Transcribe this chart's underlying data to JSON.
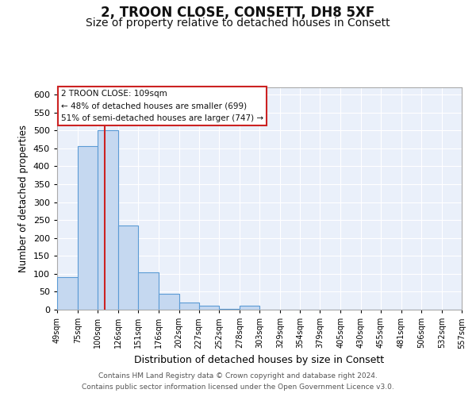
{
  "title": "2, TROON CLOSE, CONSETT, DH8 5XF",
  "subtitle": "Size of property relative to detached houses in Consett",
  "xlabel": "Distribution of detached houses by size in Consett",
  "ylabel": "Number of detached properties",
  "bin_edges": [
    49,
    75,
    100,
    126,
    151,
    176,
    202,
    227,
    252,
    278,
    303,
    329,
    354,
    379,
    405,
    430,
    455,
    481,
    506,
    532,
    557
  ],
  "bin_labels": [
    "49sqm",
    "75sqm",
    "100sqm",
    "126sqm",
    "151sqm",
    "176sqm",
    "202sqm",
    "227sqm",
    "252sqm",
    "278sqm",
    "303sqm",
    "329sqm",
    "354sqm",
    "379sqm",
    "405sqm",
    "430sqm",
    "455sqm",
    "481sqm",
    "506sqm",
    "532sqm",
    "557sqm"
  ],
  "bar_heights": [
    90,
    457,
    500,
    235,
    105,
    45,
    20,
    10,
    2,
    10,
    1,
    1,
    0,
    0,
    0,
    0,
    0,
    1,
    1,
    0,
    1
  ],
  "bar_color": "#c5d8f0",
  "bar_edge_color": "#5b9bd5",
  "red_line_x": 109,
  "ylim": [
    0,
    620
  ],
  "yticks": [
    0,
    50,
    100,
    150,
    200,
    250,
    300,
    350,
    400,
    450,
    500,
    550,
    600
  ],
  "annotation_title": "2 TROON CLOSE: 109sqm",
  "annotation_line1": "← 48% of detached houses are smaller (699)",
  "annotation_line2": "51% of semi-detached houses are larger (747) →",
  "annotation_box_color": "#ffffff",
  "annotation_box_edge_color": "#cc2222",
  "background_color": "#eaf0fa",
  "footer_line1": "Contains HM Land Registry data © Crown copyright and database right 2024.",
  "footer_line2": "Contains public sector information licensed under the Open Government Licence v3.0.",
  "grid_color": "#ffffff",
  "title_fontsize": 12,
  "subtitle_fontsize": 10
}
